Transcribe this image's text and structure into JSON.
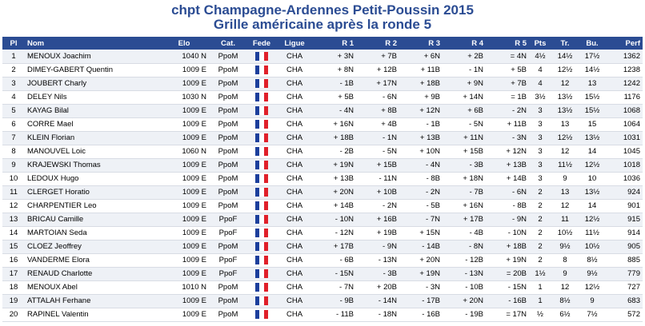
{
  "title_line1": "chpt Champagne-Ardennes Petit-Poussin 2015",
  "title_line2": "Grille américaine après la ronde 5",
  "columns": [
    "Pl",
    "Nom",
    "Elo",
    "Cat.",
    "Fede",
    "Ligue",
    "R 1",
    "R 2",
    "R 3",
    "R 4",
    "R 5",
    "Pts",
    "Tr.",
    "Bu.",
    "Perf"
  ],
  "flag_icon": "france-flag-icon",
  "rows": [
    {
      "pl": "1",
      "nom": "MENOUX Joachim",
      "elo": "1040 N",
      "cat": "PpoM",
      "ligue": "CHA",
      "r1": "+ 3N",
      "r2": "+ 7B",
      "r3": "+ 6N",
      "r4": "+ 2B",
      "r5": "= 4N",
      "pts": "4½",
      "tr": "14½",
      "bu": "17½",
      "perf": "1362"
    },
    {
      "pl": "2",
      "nom": "DIMEY-GABERT Quentin",
      "elo": "1009 E",
      "cat": "PpoM",
      "ligue": "CHA",
      "r1": "+ 8N",
      "r2": "+ 12B",
      "r3": "+ 11B",
      "r4": "- 1N",
      "r5": "+ 5B",
      "pts": "4",
      "tr": "12½",
      "bu": "14½",
      "perf": "1238"
    },
    {
      "pl": "3",
      "nom": "JOUBERT Charly",
      "elo": "1009 E",
      "cat": "PpoM",
      "ligue": "CHA",
      "r1": "- 1B",
      "r2": "+ 17N",
      "r3": "+ 18B",
      "r4": "+ 9N",
      "r5": "+ 7B",
      "pts": "4",
      "tr": "12",
      "bu": "13",
      "perf": "1242"
    },
    {
      "pl": "4",
      "nom": "DELEY Nils",
      "elo": "1030 N",
      "cat": "PpoM",
      "ligue": "CHA",
      "r1": "+ 5B",
      "r2": "- 6N",
      "r3": "+ 9B",
      "r4": "+ 14N",
      "r5": "= 1B",
      "pts": "3½",
      "tr": "13½",
      "bu": "15½",
      "perf": "1176"
    },
    {
      "pl": "5",
      "nom": "KAYAG Bilal",
      "elo": "1009 E",
      "cat": "PpoM",
      "ligue": "CHA",
      "r1": "- 4N",
      "r2": "+ 8B",
      "r3": "+ 12N",
      "r4": "+ 6B",
      "r5": "- 2N",
      "pts": "3",
      "tr": "13½",
      "bu": "15½",
      "perf": "1068"
    },
    {
      "pl": "6",
      "nom": "CORRE Mael",
      "elo": "1009 E",
      "cat": "PpoM",
      "ligue": "CHA",
      "r1": "+ 16N",
      "r2": "+ 4B",
      "r3": "- 1B",
      "r4": "- 5N",
      "r5": "+ 11B",
      "pts": "3",
      "tr": "13",
      "bu": "15",
      "perf": "1064"
    },
    {
      "pl": "7",
      "nom": "KLEIN Florian",
      "elo": "1009 E",
      "cat": "PpoM",
      "ligue": "CHA",
      "r1": "+ 18B",
      "r2": "- 1N",
      "r3": "+ 13B",
      "r4": "+ 11N",
      "r5": "- 3N",
      "pts": "3",
      "tr": "12½",
      "bu": "13½",
      "perf": "1031"
    },
    {
      "pl": "8",
      "nom": "MANOUVEL Loic",
      "elo": "1060 N",
      "cat": "PpoM",
      "ligue": "CHA",
      "r1": "- 2B",
      "r2": "- 5N",
      "r3": "+ 10N",
      "r4": "+ 15B",
      "r5": "+ 12N",
      "pts": "3",
      "tr": "12",
      "bu": "14",
      "perf": "1045"
    },
    {
      "pl": "9",
      "nom": "KRAJEWSKI Thomas",
      "elo": "1009 E",
      "cat": "PpoM",
      "ligue": "CHA",
      "r1": "+ 19N",
      "r2": "+ 15B",
      "r3": "- 4N",
      "r4": "- 3B",
      "r5": "+ 13B",
      "pts": "3",
      "tr": "11½",
      "bu": "12½",
      "perf": "1018"
    },
    {
      "pl": "10",
      "nom": "LEDOUX Hugo",
      "elo": "1009 E",
      "cat": "PpoM",
      "ligue": "CHA",
      "r1": "+ 13B",
      "r2": "- 11N",
      "r3": "- 8B",
      "r4": "+ 18N",
      "r5": "+ 14B",
      "pts": "3",
      "tr": "9",
      "bu": "10",
      "perf": "1036"
    },
    {
      "pl": "11",
      "nom": "CLERGET Horatio",
      "elo": "1009 E",
      "cat": "PpoM",
      "ligue": "CHA",
      "r1": "+ 20N",
      "r2": "+ 10B",
      "r3": "- 2N",
      "r4": "- 7B",
      "r5": "- 6N",
      "pts": "2",
      "tr": "13",
      "bu": "13½",
      "perf": "924"
    },
    {
      "pl": "12",
      "nom": "CHARPENTIER Leo",
      "elo": "1009 E",
      "cat": "PpoM",
      "ligue": "CHA",
      "r1": "+ 14B",
      "r2": "- 2N",
      "r3": "- 5B",
      "r4": "+ 16N",
      "r5": "- 8B",
      "pts": "2",
      "tr": "12",
      "bu": "14",
      "perf": "901"
    },
    {
      "pl": "13",
      "nom": "BRICAU Camille",
      "elo": "1009 E",
      "cat": "PpoF",
      "ligue": "CHA",
      "r1": "- 10N",
      "r2": "+ 16B",
      "r3": "- 7N",
      "r4": "+ 17B",
      "r5": "- 9N",
      "pts": "2",
      "tr": "11",
      "bu": "12½",
      "perf": "915"
    },
    {
      "pl": "14",
      "nom": "MARTOIAN Seda",
      "elo": "1009 E",
      "cat": "PpoF",
      "ligue": "CHA",
      "r1": "- 12N",
      "r2": "+ 19B",
      "r3": "+ 15N",
      "r4": "- 4B",
      "r5": "- 10N",
      "pts": "2",
      "tr": "10½",
      "bu": "11½",
      "perf": "914"
    },
    {
      "pl": "15",
      "nom": "CLOEZ Jeoffrey",
      "elo": "1009 E",
      "cat": "PpoM",
      "ligue": "CHA",
      "r1": "+ 17B",
      "r2": "- 9N",
      "r3": "- 14B",
      "r4": "- 8N",
      "r5": "+ 18B",
      "pts": "2",
      "tr": "9½",
      "bu": "10½",
      "perf": "905"
    },
    {
      "pl": "16",
      "nom": "VANDERME Elora",
      "elo": "1009 E",
      "cat": "PpoF",
      "ligue": "CHA",
      "r1": "- 6B",
      "r2": "- 13N",
      "r3": "+ 20N",
      "r4": "- 12B",
      "r5": "+ 19N",
      "pts": "2",
      "tr": "8",
      "bu": "8½",
      "perf": "885"
    },
    {
      "pl": "17",
      "nom": "RENAUD Charlotte",
      "elo": "1009 E",
      "cat": "PpoF",
      "ligue": "CHA",
      "r1": "- 15N",
      "r2": "- 3B",
      "r3": "+ 19N",
      "r4": "- 13N",
      "r5": "= 20B",
      "pts": "1½",
      "tr": "9",
      "bu": "9½",
      "perf": "779"
    },
    {
      "pl": "18",
      "nom": "MENOUX Abel",
      "elo": "1010 N",
      "cat": "PpoM",
      "ligue": "CHA",
      "r1": "- 7N",
      "r2": "+ 20B",
      "r3": "- 3N",
      "r4": "- 10B",
      "r5": "- 15N",
      "pts": "1",
      "tr": "12",
      "bu": "12½",
      "perf": "727"
    },
    {
      "pl": "19",
      "nom": "ATTALAH Ferhane",
      "elo": "1009 E",
      "cat": "PpoM",
      "ligue": "CHA",
      "r1": "- 9B",
      "r2": "- 14N",
      "r3": "- 17B",
      "r4": "+ 20N",
      "r5": "- 16B",
      "pts": "1",
      "tr": "8½",
      "bu": "9",
      "perf": "683"
    },
    {
      "pl": "20",
      "nom": "RAPINEL Valentin",
      "elo": "1009 E",
      "cat": "PpoM",
      "ligue": "CHA",
      "r1": "- 11B",
      "r2": "- 18N",
      "r3": "- 16B",
      "r4": "- 19B",
      "r5": "= 17N",
      "pts": "½",
      "tr": "6½",
      "bu": "7½",
      "perf": "572"
    }
  ]
}
